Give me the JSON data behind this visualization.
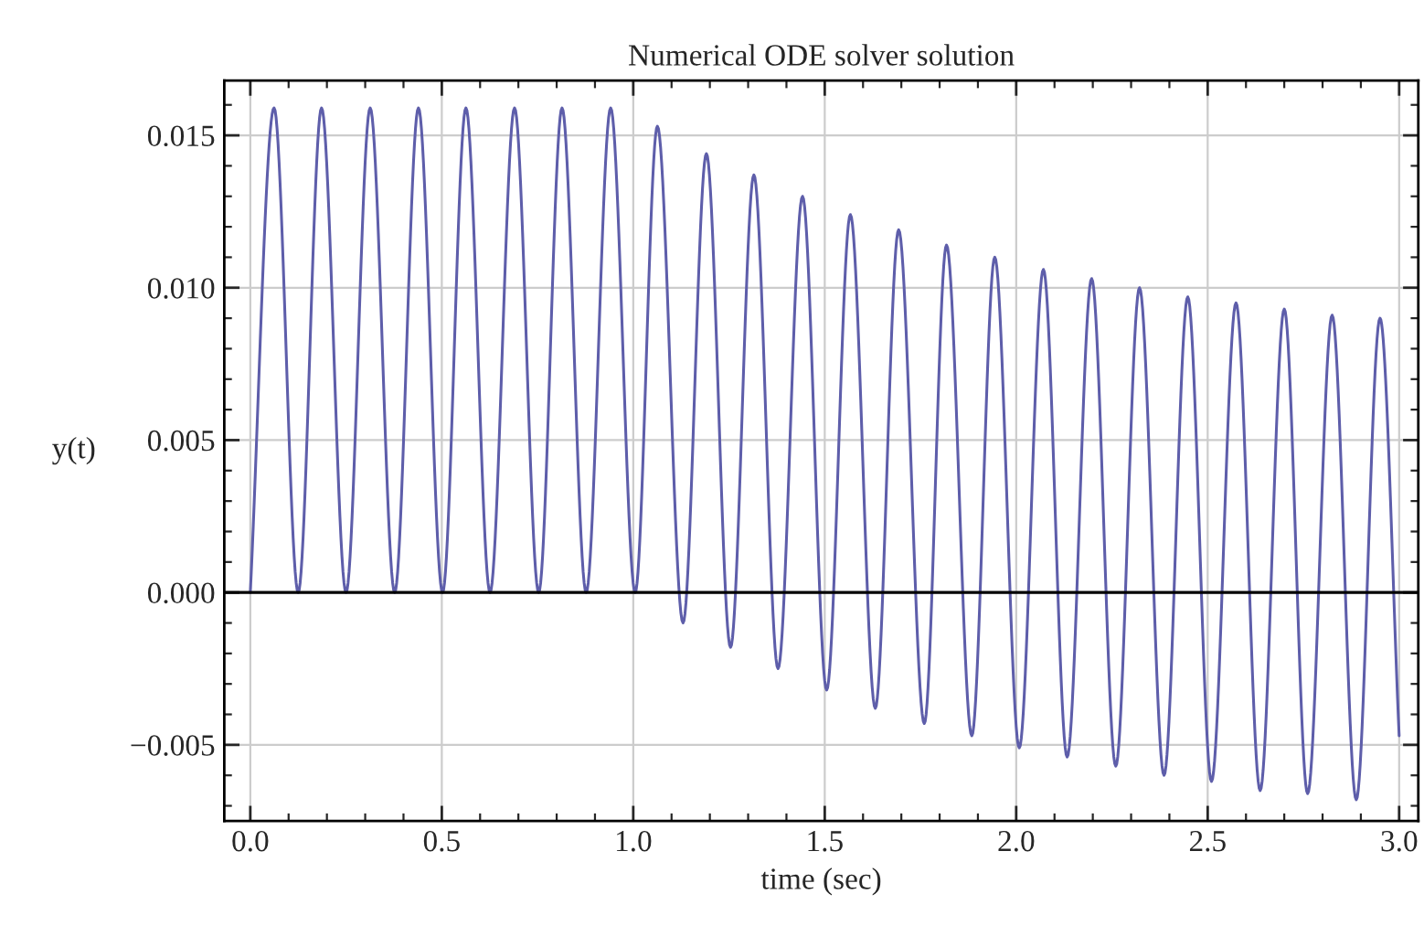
{
  "chart_data": {
    "type": "line",
    "title": "Numerical ODE solver solution",
    "xlabel": "time (sec)",
    "ylabel": "y(t)",
    "x": [
      0.0,
      0.062,
      0.125,
      0.186,
      0.25,
      0.313,
      0.377,
      0.439,
      0.502,
      0.563,
      0.626,
      0.69,
      0.753,
      0.814,
      0.877,
      0.941,
      1.005,
      1.063,
      1.13,
      1.191,
      1.254,
      1.315,
      1.378,
      1.442,
      1.505,
      1.567,
      1.632,
      1.693,
      1.76,
      1.818,
      1.884,
      1.944,
      2.008,
      2.071,
      2.133,
      2.197,
      2.26,
      2.322,
      2.386,
      2.448,
      2.51,
      2.574,
      2.637,
      2.7,
      2.761,
      2.825,
      2.888,
      2.95,
      3.0
    ],
    "series": [
      {
        "color": "#5e5eaa",
        "values": [
          0.0,
          0.0159,
          0.0,
          0.0159,
          0.0,
          0.0159,
          0.0,
          0.0159,
          0.0,
          0.0159,
          0.0,
          0.0159,
          0.0,
          0.0159,
          0.0,
          0.0159,
          0.0,
          0.0153,
          -0.001,
          0.0144,
          -0.0018,
          0.0137,
          -0.0025,
          0.013,
          -0.0032,
          0.0124,
          -0.0038,
          0.0119,
          -0.0043,
          0.0114,
          -0.0047,
          0.011,
          -0.0051,
          0.0106,
          -0.0054,
          0.0103,
          -0.0057,
          0.01,
          -0.006,
          0.0097,
          -0.0062,
          0.0095,
          -0.0065,
          0.0093,
          -0.0066,
          0.0091,
          -0.0068,
          0.009,
          -0.0047
        ]
      }
    ],
    "xlim": [
      -0.068,
      3.05
    ],
    "ylim": [
      -0.0075,
      0.0168
    ],
    "xticks": [
      {
        "value": 0,
        "label": "0.0"
      },
      {
        "value": 0.5,
        "label": "0.5"
      },
      {
        "value": 1,
        "label": "1.0"
      },
      {
        "value": 1.5,
        "label": "1.5"
      },
      {
        "value": 2,
        "label": "2.0"
      },
      {
        "value": 2.5,
        "label": "2.5"
      },
      {
        "value": 3,
        "label": "3.0"
      }
    ],
    "yticks": [
      {
        "value": -0.005,
        "label": "−0.005"
      },
      {
        "value": 0,
        "label": "0.000"
      },
      {
        "value": 0.005,
        "label": "0.005"
      },
      {
        "value": 0.01,
        "label": "0.010"
      },
      {
        "value": 0.015,
        "label": "0.015"
      }
    ],
    "ref_lines": [
      {
        "axis": "y",
        "value": 0,
        "color": "#000000"
      }
    ],
    "grid": true,
    "legend": false,
    "marker": "none",
    "line_style": "solid"
  }
}
